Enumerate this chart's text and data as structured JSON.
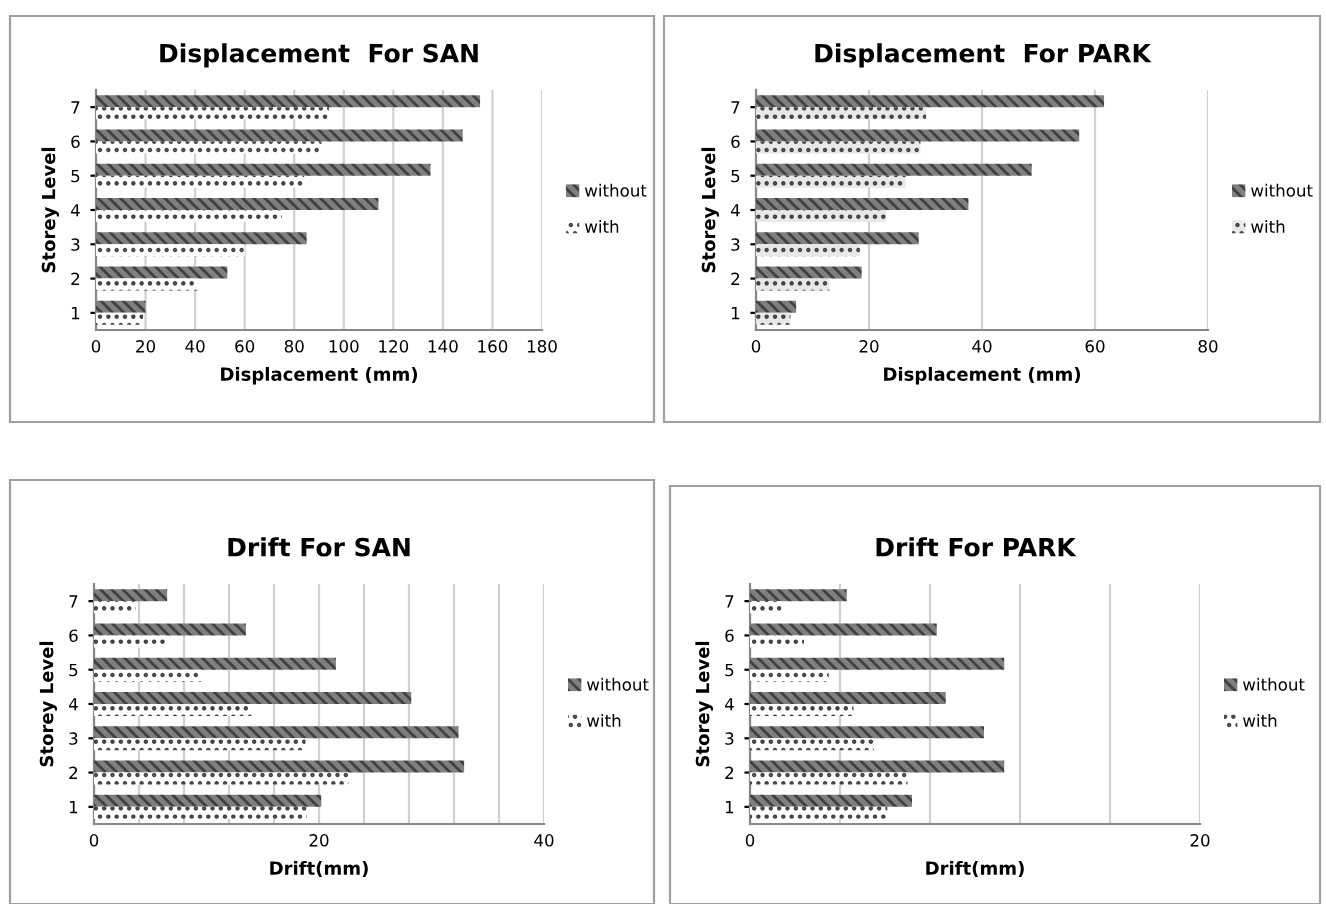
{
  "chart_data": [
    {
      "type": "bar",
      "orientation": "horizontal",
      "title": "Displacement  For SAN",
      "xlabel": "Displacement (mm)",
      "ylabel": "Storey Level",
      "categories": [
        "7",
        "6",
        "5",
        "4",
        "3",
        "2",
        "1"
      ],
      "series": [
        {
          "name": "without",
          "color": "#7f7f7f",
          "values": [
            155,
            148,
            135,
            114,
            85,
            53,
            20
          ]
        },
        {
          "name": "with",
          "color": "#ffffff",
          "values": [
            94,
            91,
            84,
            75,
            60,
            41,
            19
          ]
        }
      ],
      "xlim": [
        0,
        180
      ],
      "xticks": [
        0,
        20,
        40,
        60,
        80,
        100,
        120,
        140,
        160,
        180
      ],
      "grid": "x",
      "legend": "right"
    },
    {
      "type": "bar",
      "orientation": "horizontal",
      "title": "Displacement  For PARK",
      "xlabel": "Displacement (mm)",
      "ylabel": "Storey Level",
      "categories": [
        "7",
        "6",
        "5",
        "4",
        "3",
        "2",
        "1"
      ],
      "series": [
        {
          "name": "without",
          "color": "#7f7f7f",
          "values": [
            61.6,
            57.2,
            48.8,
            37.6,
            28.8,
            18.7,
            7.1
          ]
        },
        {
          "name": "with",
          "color": "#e8e8e8",
          "values": [
            30.1,
            29.1,
            26.5,
            23,
            18.4,
            13,
            6.1
          ]
        }
      ],
      "xlim": [
        0,
        80
      ],
      "xticks": [
        0,
        20,
        40,
        60,
        80
      ],
      "grid": "x",
      "legend": "right"
    },
    {
      "type": "bar",
      "orientation": "horizontal",
      "title": "Drift For SAN",
      "xlabel": "Drift(mm)",
      "ylabel": "Storey Level",
      "categories": [
        "7",
        "6",
        "5",
        "4",
        "3",
        "2",
        "1"
      ],
      "series": [
        {
          "name": "without",
          "color": "#7f7f7f",
          "values": [
            6.5,
            13.5,
            21.5,
            28.2,
            32.4,
            32.9,
            20.2
          ]
        },
        {
          "name": "with",
          "color": "#ffffff",
          "values": [
            3.7,
            6.4,
            9.6,
            14,
            18.8,
            22.6,
            18.9
          ]
        }
      ],
      "xlim": [
        0,
        40
      ],
      "xticks": [
        0,
        {
          "value": 4,
          "label": null
        },
        {
          "value": 8,
          "label": null
        },
        {
          "value": 12,
          "label": null
        },
        {
          "value": 16,
          "label": null
        },
        20,
        {
          "value": 24,
          "label": null
        },
        {
          "value": 28,
          "label": null
        },
        {
          "value": 32,
          "label": null
        },
        {
          "value": 36,
          "label": null
        },
        40
      ],
      "grid": "x",
      "legend": "right"
    },
    {
      "type": "bar",
      "orientation": "horizontal",
      "title": "Drift For PARK",
      "xlabel": "Drift(mm)",
      "ylabel": "Storey Level",
      "categories": [
        "7",
        "6",
        "5",
        "4",
        "3",
        "2",
        "1"
      ],
      "series": [
        {
          "name": "without",
          "color": "#7f7f7f",
          "values": [
            4.3,
            8.3,
            11.3,
            8.7,
            10.4,
            11.3,
            7.2
          ]
        },
        {
          "name": "with",
          "color": "#ffffff",
          "values": [
            1.4,
            2.4,
            3.5,
            4.6,
            5.5,
            7,
            6.1
          ]
        }
      ],
      "xlim": [
        0,
        20
      ],
      "xticks": [
        0,
        {
          "value": 4,
          "label": null
        },
        {
          "value": 8,
          "label": null
        },
        {
          "value": 12,
          "label": null
        },
        {
          "value": 16,
          "label": null
        },
        20
      ],
      "grid": "x",
      "legend": "right"
    }
  ]
}
